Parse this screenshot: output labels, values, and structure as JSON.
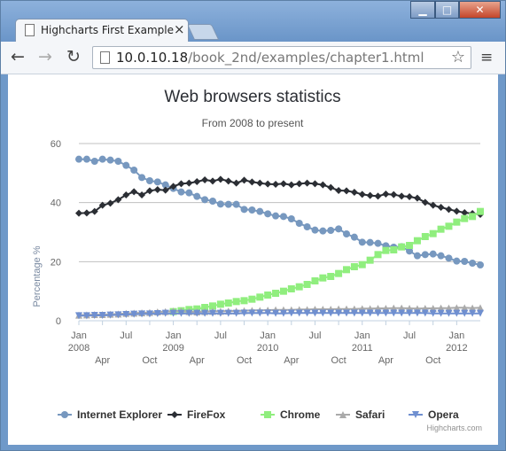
{
  "browser": {
    "tab_title": "Highcharts First Example",
    "close_symbol": "×",
    "url_host": "10.0.10.18",
    "url_path": "/book_2nd/examples/chapter1.html",
    "window_controls": {
      "minimize": "▁",
      "maximize": "□",
      "close": "✕"
    }
  },
  "chart_data": {
    "type": "line",
    "title": "Web browsers statistics",
    "subtitle": "From 2008 to present",
    "ylabel": "Percentage %",
    "ylim": [
      0,
      60
    ],
    "yticks": [
      0,
      20,
      40,
      60
    ],
    "x_tick_labels": [
      {
        "idx": 0,
        "label": "Jan",
        "year": "2008"
      },
      {
        "idx": 3,
        "label": "Apr",
        "year": ""
      },
      {
        "idx": 6,
        "label": "Jul",
        "year": ""
      },
      {
        "idx": 9,
        "label": "Oct",
        "year": ""
      },
      {
        "idx": 12,
        "label": "Jan",
        "year": "2009"
      },
      {
        "idx": 15,
        "label": "Apr",
        "year": ""
      },
      {
        "idx": 18,
        "label": "Jul",
        "year": ""
      },
      {
        "idx": 21,
        "label": "Oct",
        "year": ""
      },
      {
        "idx": 24,
        "label": "Jan",
        "year": "2010"
      },
      {
        "idx": 27,
        "label": "Apr",
        "year": ""
      },
      {
        "idx": 30,
        "label": "Jul",
        "year": ""
      },
      {
        "idx": 33,
        "label": "Oct",
        "year": ""
      },
      {
        "idx": 36,
        "label": "Jan",
        "year": "2011"
      },
      {
        "idx": 39,
        "label": "Apr",
        "year": ""
      },
      {
        "idx": 42,
        "label": "Jul",
        "year": ""
      },
      {
        "idx": 45,
        "label": "Oct",
        "year": ""
      },
      {
        "idx": 48,
        "label": "Jan",
        "year": "2012"
      }
    ],
    "series": [
      {
        "name": "Internet Explorer",
        "color": "#7798BF",
        "marker": "circle",
        "values": [
          54.7,
          54.7,
          54.0,
          54.7,
          54.4,
          54.0,
          52.6,
          51.0,
          48.5,
          47.4,
          47.0,
          46.0,
          44.8,
          43.6,
          43.3,
          42.1,
          41.0,
          40.5,
          39.5,
          39.4,
          39.4,
          37.7,
          37.5,
          37.0,
          36.2,
          35.5,
          35.3,
          34.5,
          33.0,
          31.8,
          30.7,
          30.4,
          30.6,
          31.1,
          29.4,
          28.3,
          26.6,
          26.5,
          26.2,
          25.4,
          24.9,
          25.1,
          23.6,
          22.0,
          22.4,
          22.6,
          22.0,
          21.2,
          20.2,
          20.1,
          19.5,
          18.9
        ]
      },
      {
        "name": "FireFox",
        "color": "#2b2e34",
        "marker": "diamond",
        "values": [
          36.4,
          36.5,
          37.0,
          39.1,
          39.8,
          41.0,
          42.6,
          43.7,
          42.6,
          44.0,
          44.4,
          44.2,
          45.5,
          46.4,
          46.6,
          47.1,
          47.7,
          47.3,
          47.9,
          47.3,
          46.6,
          47.6,
          47.0,
          46.6,
          46.3,
          46.2,
          46.4,
          46.0,
          46.4,
          46.6,
          46.4,
          46.0,
          45.1,
          44.1,
          44.0,
          43.5,
          42.8,
          42.4,
          42.2,
          42.9,
          42.7,
          42.2,
          42.0,
          41.5,
          40.1,
          39.1,
          38.4,
          37.7,
          37.1,
          36.6,
          36.3,
          36.0
        ]
      },
      {
        "name": "Chrome",
        "color": "#90ee7e",
        "marker": "square",
        "values": [
          null,
          null,
          null,
          null,
          null,
          null,
          null,
          null,
          null,
          null,
          null,
          null,
          3.1,
          3.4,
          3.8,
          4.0,
          4.5,
          5.0,
          5.6,
          6.0,
          6.5,
          6.8,
          7.3,
          8.0,
          8.7,
          9.3,
          10.0,
          10.8,
          11.5,
          12.3,
          13.5,
          14.5,
          15.0,
          16.0,
          17.3,
          18.3,
          19.0,
          20.5,
          22.4,
          23.8,
          24.0,
          25.0,
          25.5,
          27.1,
          28.5,
          29.5,
          31.0,
          32.0,
          33.4,
          34.6,
          35.3,
          37.0
        ]
      },
      {
        "name": "Safari",
        "color": "#aaaaaa",
        "marker": "triangle",
        "values": [
          1.9,
          2.0,
          2.1,
          2.1,
          2.2,
          2.3,
          2.5,
          2.6,
          2.7,
          2.8,
          3.0,
          3.1,
          3.3,
          3.3,
          3.1,
          3.0,
          3.1,
          3.2,
          3.2,
          3.3,
          3.3,
          3.4,
          3.5,
          3.5,
          3.6,
          3.7,
          3.7,
          3.7,
          3.8,
          3.8,
          3.9,
          3.9,
          3.9,
          4.0,
          4.0,
          4.0,
          4.1,
          4.1,
          4.2,
          4.2,
          4.3,
          4.3,
          4.2,
          4.1,
          4.2,
          4.2,
          4.3,
          4.3,
          4.4,
          4.4,
          4.3,
          4.4
        ]
      },
      {
        "name": "Opera",
        "color": "#6f8fd0",
        "marker": "triangle-down",
        "values": [
          1.7,
          1.7,
          1.8,
          1.8,
          1.9,
          2.0,
          2.1,
          2.2,
          2.3,
          2.3,
          2.4,
          2.5,
          2.5,
          2.5,
          2.5,
          2.5,
          2.5,
          2.5,
          2.5,
          2.5,
          2.5,
          2.6,
          2.6,
          2.6,
          2.6,
          2.5,
          2.5,
          2.6,
          2.6,
          2.6,
          2.6,
          2.6,
          2.6,
          2.6,
          2.6,
          2.6,
          2.6,
          2.6,
          2.6,
          2.6,
          2.6,
          2.6,
          2.6,
          2.6,
          2.6,
          2.5,
          2.5,
          2.5,
          2.5,
          2.5,
          2.5,
          2.5
        ]
      }
    ],
    "legend_position": "bottom",
    "credits": "Highcharts.com"
  }
}
